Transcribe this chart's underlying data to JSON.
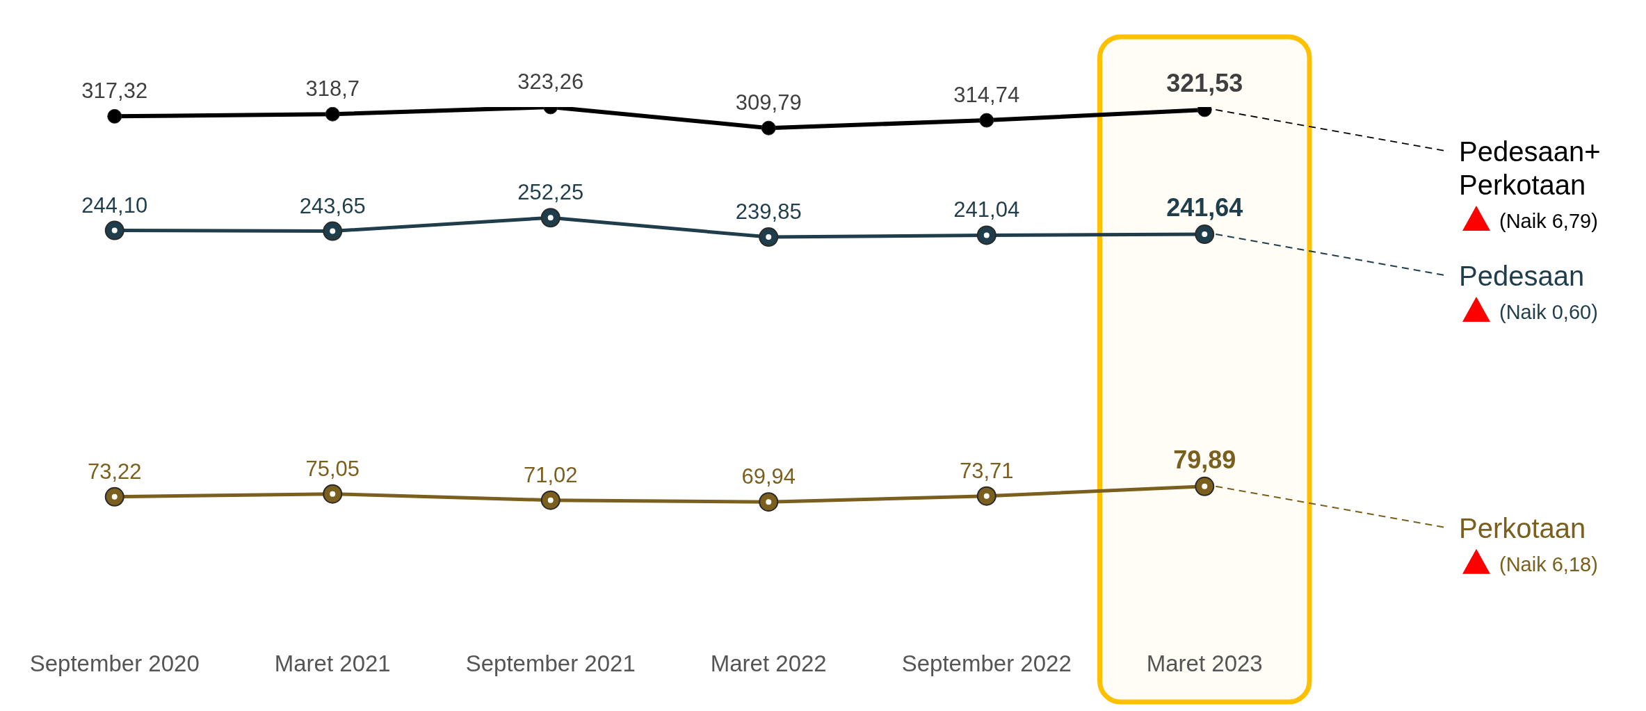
{
  "chart_data": {
    "type": "line",
    "categories": [
      "September 2020",
      "Maret 2021",
      "September 2021",
      "Maret 2022",
      "September 2022",
      "Maret 2023"
    ],
    "series": [
      {
        "name": "Pedesaan+ Perkotaan",
        "color": "#000000",
        "values": [
          317.32,
          318.7,
          323.26,
          309.79,
          314.74,
          321.53
        ],
        "value_labels": [
          "317,32",
          "318,7",
          "323,26",
          "309,79",
          "314,74",
          "321,53"
        ]
      },
      {
        "name": "Pedesaan",
        "color": "#1f3d4a",
        "values": [
          244.1,
          243.65,
          252.25,
          239.85,
          241.04,
          241.64
        ],
        "value_labels": [
          "244,10",
          "243,65",
          "252,25",
          "239,85",
          "241,04",
          "241,64"
        ]
      },
      {
        "name": "Perkotaan",
        "color": "#7a5f1e",
        "values": [
          73.22,
          75.05,
          71.02,
          69.94,
          73.71,
          79.89
        ],
        "value_labels": [
          "73,22",
          "75,05",
          "71,02",
          "69,94",
          "73,71",
          "79,89"
        ]
      }
    ],
    "annotations": [
      "(Naik 6,79)",
      "(Naik 0,60)",
      "(Naik 6,18)"
    ],
    "bands": [
      {
        "axis": "x",
        "from": "Maret 2023",
        "to": "Maret 2023",
        "color": "#ffc000"
      }
    ],
    "marker": "circle",
    "line_style": "solid",
    "legend": false,
    "grid": false,
    "tick_labels": "x"
  }
}
